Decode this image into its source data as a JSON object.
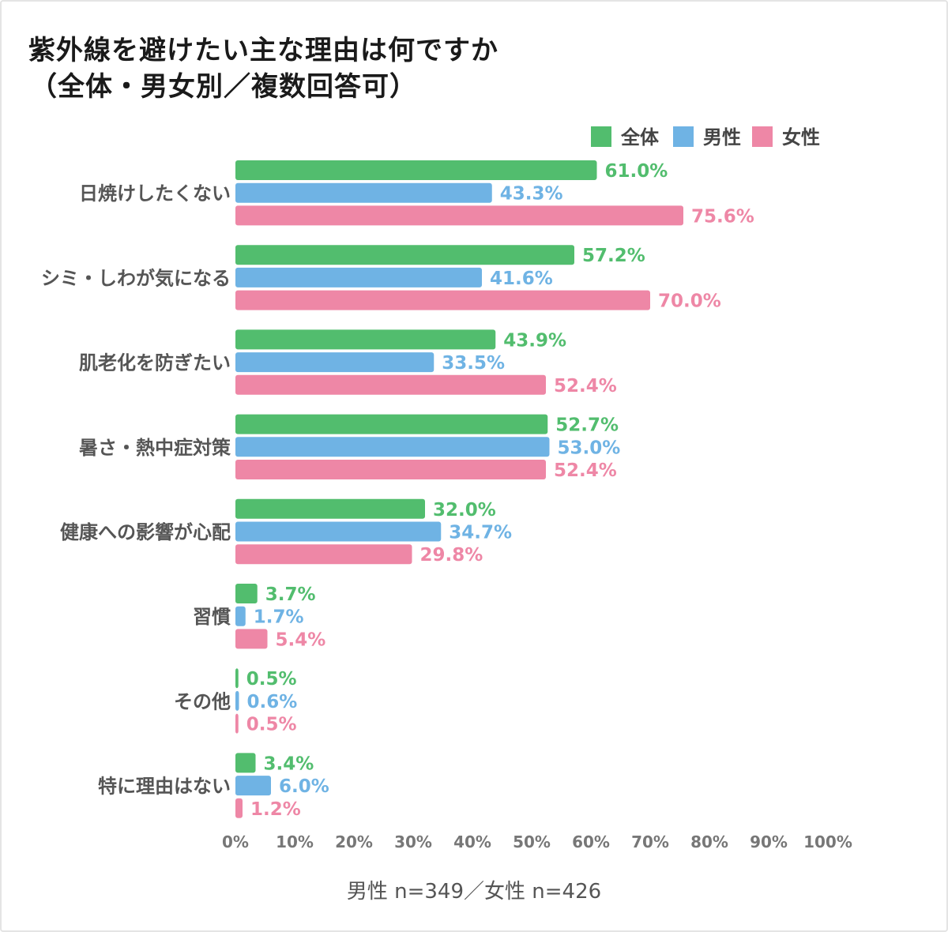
{
  "chart_data": {
    "type": "bar",
    "orientation": "horizontal",
    "title_line1": "紫外線を避けたい主な理由は何ですか",
    "title_line2": "（全体・男女別／複数回答可）",
    "categories": [
      "日焼けしたくない",
      "シミ・しわが気になる",
      "肌老化を防ぎたい",
      "暑さ・熱中症対策",
      "健康への影響が心配",
      "習慣",
      "その他",
      "特に理由はない"
    ],
    "series": [
      {
        "name": "全体",
        "color": "#52bd6e",
        "values": [
          61.0,
          57.2,
          43.9,
          52.7,
          32.0,
          3.7,
          0.5,
          3.4
        ]
      },
      {
        "name": "男性",
        "color": "#6fb3e4",
        "values": [
          43.3,
          41.6,
          33.5,
          53.0,
          34.7,
          1.7,
          0.6,
          6.0
        ]
      },
      {
        "name": "女性",
        "color": "#ee87a6",
        "values": [
          75.6,
          70.0,
          52.4,
          52.4,
          29.8,
          5.4,
          0.5,
          1.2
        ]
      }
    ],
    "value_suffix": "%",
    "xlim": [
      0,
      100
    ],
    "x_ticks": [
      "0%",
      "10%",
      "20%",
      "30%",
      "40%",
      "50%",
      "60%",
      "70%",
      "80%",
      "90%",
      "100%"
    ],
    "legend_position": "top-right",
    "grid": false,
    "footnote": "男性 n=349／女性 n=426"
  }
}
